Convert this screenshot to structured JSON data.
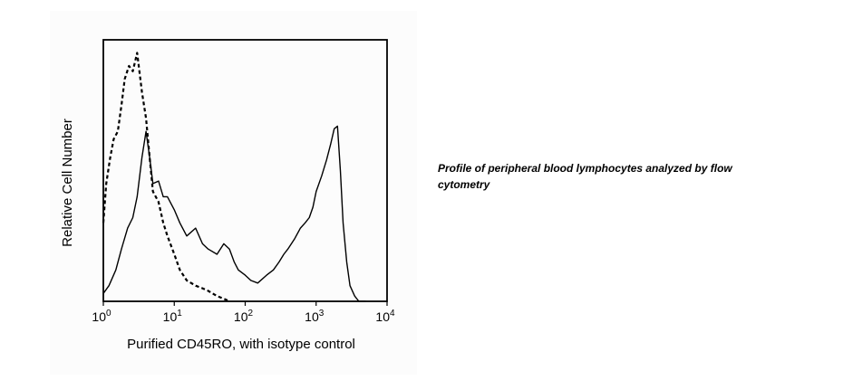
{
  "caption": "Profile of peripheral blood lymphocytes analyzed by flow cytometry",
  "chart_data": {
    "type": "line",
    "title": "",
    "xlabel": "Purified CD45RO, with isotype control",
    "ylabel": "Relative Cell Number",
    "x_scale": "log",
    "xlim": [
      1,
      10000
    ],
    "ylim": [
      0,
      1
    ],
    "grid": false,
    "x_ticks": [
      {
        "base": "10",
        "exp": "0",
        "value": 1
      },
      {
        "base": "10",
        "exp": "1",
        "value": 10
      },
      {
        "base": "10",
        "exp": "2",
        "value": 100
      },
      {
        "base": "10",
        "exp": "3",
        "value": 1000
      },
      {
        "base": "10",
        "exp": "4",
        "value": 10000
      }
    ],
    "series": [
      {
        "style": "solid",
        "color": "#000000",
        "x": [
          1.0,
          1.2,
          1.5,
          1.8,
          2.2,
          2.6,
          3.0,
          3.5,
          4.0,
          4.5,
          5.0,
          6.0,
          7.0,
          8.0,
          10,
          12,
          15,
          20,
          25,
          30,
          40,
          50,
          60,
          70,
          80,
          100,
          120,
          150,
          200,
          250,
          300,
          350,
          400,
          500,
          600,
          700,
          800,
          900,
          1000,
          1200,
          1400,
          1600,
          1800,
          2000,
          2200,
          2400,
          2700,
          3000,
          3500,
          4000,
          5000
        ],
        "y": [
          0.03,
          0.06,
          0.12,
          0.2,
          0.28,
          0.32,
          0.4,
          0.55,
          0.65,
          0.55,
          0.45,
          0.46,
          0.4,
          0.4,
          0.35,
          0.3,
          0.25,
          0.28,
          0.22,
          0.2,
          0.18,
          0.22,
          0.2,
          0.15,
          0.12,
          0.1,
          0.08,
          0.07,
          0.1,
          0.12,
          0.15,
          0.18,
          0.2,
          0.24,
          0.28,
          0.3,
          0.32,
          0.36,
          0.42,
          0.48,
          0.54,
          0.6,
          0.66,
          0.67,
          0.5,
          0.3,
          0.15,
          0.06,
          0.02,
          0.0,
          0.0
        ]
      },
      {
        "style": "dashed",
        "color": "#000000",
        "x": [
          1.0,
          1.1,
          1.25,
          1.4,
          1.6,
          1.8,
          2.0,
          2.3,
          2.6,
          3.0,
          3.5,
          4.0,
          4.5,
          5.0,
          6.0,
          7.0,
          8.0,
          10,
          12,
          15,
          20,
          25,
          30,
          40,
          50,
          60
        ],
        "y": [
          0.3,
          0.45,
          0.55,
          0.62,
          0.65,
          0.75,
          0.85,
          0.9,
          0.88,
          0.95,
          0.8,
          0.7,
          0.55,
          0.42,
          0.38,
          0.3,
          0.25,
          0.18,
          0.12,
          0.08,
          0.06,
          0.05,
          0.04,
          0.02,
          0.01,
          0.0
        ]
      }
    ]
  }
}
